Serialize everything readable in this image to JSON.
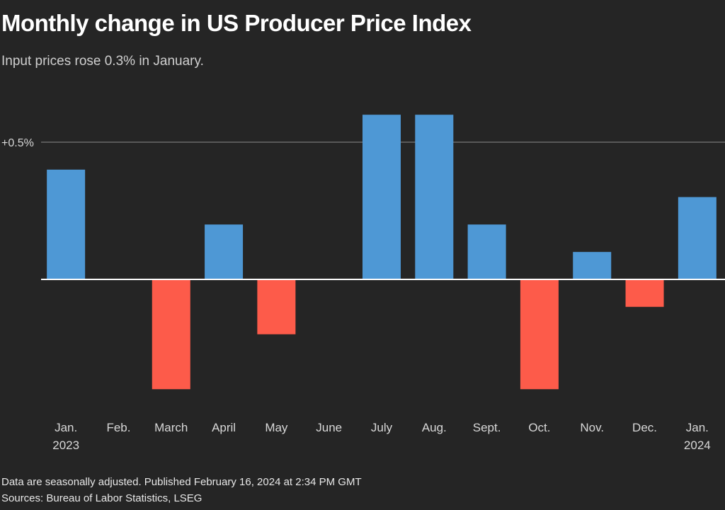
{
  "chart_data": {
    "type": "bar",
    "title": "Monthly change in US Producer Price Index",
    "subtitle": "Input prices rose 0.3% in January.",
    "xlabel": "",
    "ylabel": "",
    "categories": [
      {
        "label": "Jan.",
        "sub": "2023"
      },
      {
        "label": "Feb.",
        "sub": ""
      },
      {
        "label": "March",
        "sub": ""
      },
      {
        "label": "April",
        "sub": ""
      },
      {
        "label": "May",
        "sub": ""
      },
      {
        "label": "June",
        "sub": ""
      },
      {
        "label": "July",
        "sub": ""
      },
      {
        "label": "Aug.",
        "sub": ""
      },
      {
        "label": "Sept.",
        "sub": ""
      },
      {
        "label": "Oct.",
        "sub": ""
      },
      {
        "label": "Nov.",
        "sub": ""
      },
      {
        "label": "Dec.",
        "sub": ""
      },
      {
        "label": "Jan.",
        "sub": "2024"
      }
    ],
    "values": [
      0.4,
      0.0,
      -0.4,
      0.2,
      -0.2,
      0.0,
      0.6,
      0.6,
      0.2,
      -0.4,
      0.1,
      -0.1,
      0.3
    ],
    "unit": "%",
    "ylim": [
      -0.5,
      0.65
    ],
    "gridlines": [
      {
        "value": 0.5,
        "label": "+0.5%"
      }
    ],
    "colors": {
      "positive": "#4e98d5",
      "negative": "#fd5b4a",
      "background": "#252525",
      "gridline": "#6b6b6b",
      "zero_line": "#ffffff"
    },
    "legend": "none"
  },
  "footer": {
    "note": "Data are seasonally adjusted. Published February 16, 2024 at 2:34 PM GMT",
    "sources": "Sources: Bureau of Labor Statistics, LSEG"
  }
}
